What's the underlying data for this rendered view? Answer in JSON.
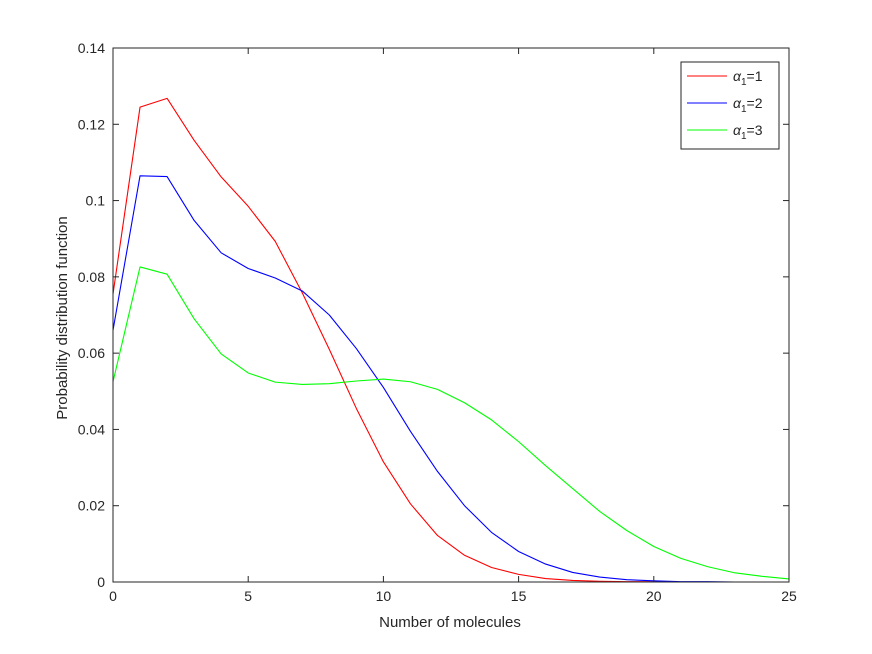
{
  "chart_data": {
    "type": "line",
    "title": "",
    "xlabel": "Number of molecules",
    "ylabel": "Probability distribution function",
    "xlim": [
      0,
      25
    ],
    "ylim": [
      0,
      0.14
    ],
    "xticks": [
      0,
      5,
      10,
      15,
      20,
      25
    ],
    "xtick_labels": [
      "0",
      "5",
      "10",
      "15",
      "20",
      "25"
    ],
    "yticks": [
      0,
      0.02,
      0.04,
      0.06,
      0.08,
      0.1,
      0.12,
      0.14
    ],
    "ytick_labels": [
      "0",
      "0.02",
      "0.04",
      "0.06",
      "0.08",
      "0.1",
      "0.12",
      "0.14"
    ],
    "grid": false,
    "legend_position": "top-right",
    "x": [
      0,
      1,
      2,
      3,
      4,
      5,
      6,
      7,
      8,
      9,
      10,
      11,
      12,
      13,
      14,
      15,
      16,
      17,
      18,
      19,
      20,
      21,
      22,
      23,
      24,
      25
    ],
    "series": [
      {
        "name": "α1=1",
        "label_symbol": "α",
        "label_subscript": "1",
        "label_suffix": "=1",
        "color": "#ff0000",
        "values": [
          0.0755,
          0.1245,
          0.1268,
          0.1158,
          0.1062,
          0.0985,
          0.0893,
          0.0758,
          0.061,
          0.0455,
          0.0315,
          0.0205,
          0.0122,
          0.007,
          0.0038,
          0.002,
          0.0009,
          0.0004,
          0.0002,
          0.0001,
          0.0001,
          0.0,
          0.0,
          0.0,
          0.0,
          0.0
        ]
      },
      {
        "name": "α1=2",
        "label_symbol": "α",
        "label_subscript": "1",
        "label_suffix": "=2",
        "color": "#0000ff",
        "values": [
          0.066,
          0.1065,
          0.1063,
          0.0948,
          0.0863,
          0.0822,
          0.0797,
          0.0763,
          0.07,
          0.0612,
          0.051,
          0.0395,
          0.029,
          0.02,
          0.013,
          0.008,
          0.0047,
          0.0025,
          0.0013,
          0.0006,
          0.0003,
          0.0001,
          0.0001,
          0.0,
          0.0,
          0.0
        ]
      },
      {
        "name": "α1=3",
        "label_symbol": "α",
        "label_subscript": "1",
        "label_suffix": "=3",
        "color": "#00ff00",
        "values": [
          0.0525,
          0.0826,
          0.0807,
          0.069,
          0.0598,
          0.0548,
          0.0524,
          0.0518,
          0.052,
          0.0527,
          0.0532,
          0.0525,
          0.0505,
          0.047,
          0.0425,
          0.0368,
          0.0305,
          0.0245,
          0.0185,
          0.0135,
          0.0093,
          0.0062,
          0.004,
          0.0024,
          0.0015,
          0.0008
        ]
      }
    ]
  }
}
